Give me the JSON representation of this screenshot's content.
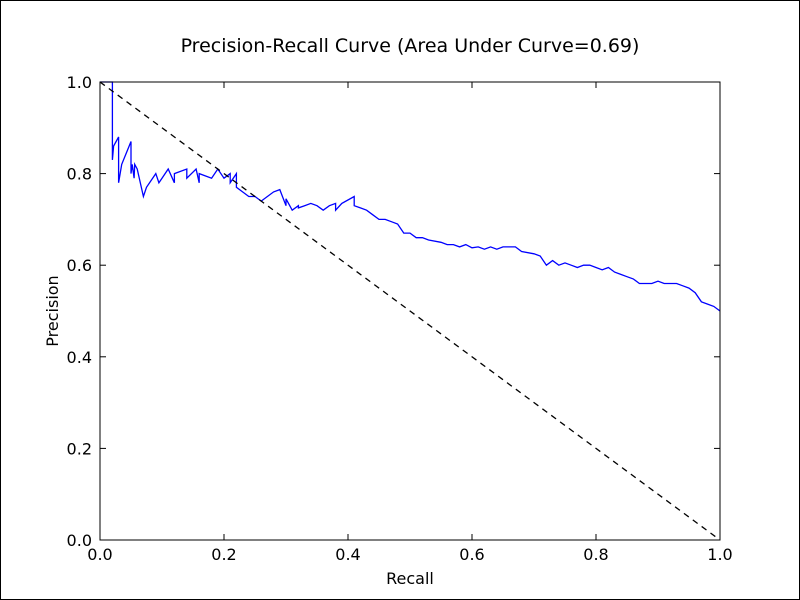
{
  "chart_data": {
    "type": "line",
    "title": "Precision-Recall Curve (Area Under Curve=0.69)",
    "xlabel": "Recall",
    "ylabel": "Precision",
    "xlim": [
      0.0,
      1.0
    ],
    "ylim": [
      0.0,
      1.0
    ],
    "xticks": [
      "0.0",
      "0.2",
      "0.4",
      "0.6",
      "0.8",
      "1.0"
    ],
    "yticks": [
      "0.0",
      "0.2",
      "0.4",
      "0.6",
      "0.8",
      "1.0"
    ],
    "grid": false,
    "legend": "none",
    "series": [
      {
        "color": "#0000ff",
        "style": "solid",
        "x": [
          0.0,
          0.02,
          0.02,
          0.022,
          0.03,
          0.03,
          0.035,
          0.05,
          0.05,
          0.052,
          0.055,
          0.056,
          0.06,
          0.07,
          0.075,
          0.09,
          0.095,
          0.1,
          0.11,
          0.12,
          0.12,
          0.14,
          0.14,
          0.155,
          0.16,
          0.16,
          0.18,
          0.19,
          0.2,
          0.21,
          0.21,
          0.22,
          0.22,
          0.23,
          0.24,
          0.25,
          0.26,
          0.27,
          0.28,
          0.29,
          0.3,
          0.3,
          0.31,
          0.32,
          0.32,
          0.33,
          0.34,
          0.35,
          0.36,
          0.37,
          0.38,
          0.38,
          0.39,
          0.41,
          0.41,
          0.42,
          0.43,
          0.44,
          0.45,
          0.46,
          0.47,
          0.48,
          0.49,
          0.5,
          0.51,
          0.52,
          0.53,
          0.55,
          0.56,
          0.57,
          0.58,
          0.59,
          0.6,
          0.61,
          0.62,
          0.63,
          0.64,
          0.65,
          0.67,
          0.68,
          0.7,
          0.71,
          0.72,
          0.73,
          0.74,
          0.75,
          0.76,
          0.77,
          0.78,
          0.79,
          0.8,
          0.81,
          0.82,
          0.83,
          0.84,
          0.85,
          0.86,
          0.87,
          0.88,
          0.89,
          0.9,
          0.91,
          0.92,
          0.93,
          0.94,
          0.95,
          0.96,
          0.97,
          0.98,
          0.99,
          1.0
        ],
        "y": [
          1.0,
          1.0,
          0.83,
          0.86,
          0.88,
          0.78,
          0.82,
          0.87,
          0.8,
          0.82,
          0.79,
          0.82,
          0.81,
          0.75,
          0.77,
          0.8,
          0.78,
          0.79,
          0.81,
          0.78,
          0.8,
          0.81,
          0.79,
          0.81,
          0.78,
          0.8,
          0.79,
          0.81,
          0.79,
          0.8,
          0.78,
          0.8,
          0.77,
          0.76,
          0.75,
          0.75,
          0.74,
          0.75,
          0.76,
          0.765,
          0.73,
          0.745,
          0.72,
          0.73,
          0.725,
          0.73,
          0.735,
          0.73,
          0.72,
          0.73,
          0.735,
          0.72,
          0.735,
          0.75,
          0.73,
          0.725,
          0.72,
          0.71,
          0.7,
          0.7,
          0.695,
          0.69,
          0.67,
          0.67,
          0.66,
          0.66,
          0.655,
          0.65,
          0.645,
          0.645,
          0.64,
          0.645,
          0.638,
          0.64,
          0.635,
          0.64,
          0.635,
          0.64,
          0.64,
          0.63,
          0.625,
          0.62,
          0.6,
          0.61,
          0.6,
          0.605,
          0.6,
          0.595,
          0.6,
          0.6,
          0.595,
          0.59,
          0.595,
          0.585,
          0.58,
          0.575,
          0.57,
          0.56,
          0.56,
          0.56,
          0.565,
          0.56,
          0.56,
          0.56,
          0.555,
          0.55,
          0.54,
          0.52,
          0.515,
          0.51,
          0.5
        ]
      },
      {
        "color": "#000000",
        "style": "dashed",
        "x": [
          0.0,
          1.0
        ],
        "y": [
          1.0,
          0.0
        ]
      }
    ]
  }
}
